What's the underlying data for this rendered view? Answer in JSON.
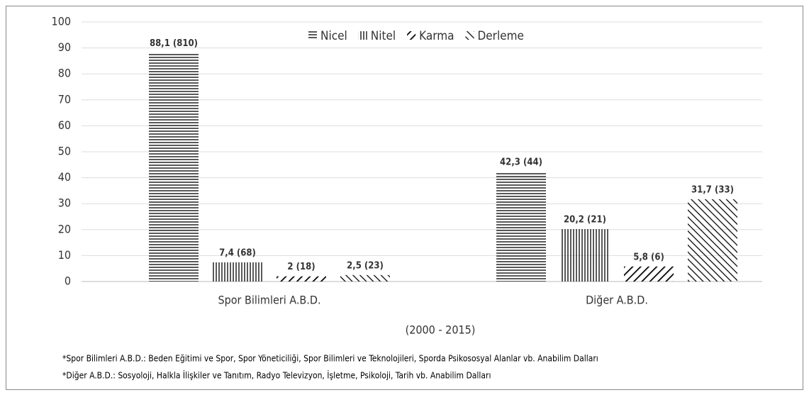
{
  "chart_data": {
    "type": "bar",
    "categories": [
      "Spor Bilimleri A.B.D.",
      "Diğer A.B.D."
    ],
    "series": [
      {
        "name": "Nicel",
        "color": "#000000",
        "pattern": "horizontal",
        "values": [
          88.1,
          42.3
        ],
        "value_labels": [
          "88,1 (810)",
          "42,3 (44)"
        ]
      },
      {
        "name": "Nitel",
        "color": "#000000",
        "pattern": "vertical",
        "values": [
          7.4,
          20.2
        ],
        "value_labels": [
          "7,4 (68)",
          "20,2 (21)"
        ]
      },
      {
        "name": "Karma",
        "color": "#000000",
        "pattern": "diagonal-up",
        "values": [
          2,
          5.8
        ],
        "value_labels": [
          "2 (18)",
          "5,8 (6)"
        ]
      },
      {
        "name": "Derleme",
        "color": "#000000",
        "pattern": "diagonal-down",
        "values": [
          2.5,
          31.7
        ],
        "value_labels": [
          "2,5 (23)",
          "31,7 (33)"
        ]
      }
    ],
    "ylim": [
      0,
      100
    ],
    "yticks": [
      0,
      10,
      20,
      30,
      40,
      50,
      60,
      70,
      80,
      90,
      100
    ],
    "grid": true,
    "legend": "top",
    "xlabel": "(2000 - 2015)",
    "notes": [
      "*Spor Bilimleri A.B.D.: Beden Eğitimi ve Spor, Spor Yöneticiliği, Spor Bilimleri ve Teknolojileri, Sporda Psikososyal Alanlar vb. Anabilim Dalları",
      "*Diğer A.B.D.: Sosyoloji, Halkla İlişkiler ve Tanıtım, Radyo Televizyon, İşletme, Psikoloji, Tarih vb. Anabilim Dalları"
    ]
  }
}
